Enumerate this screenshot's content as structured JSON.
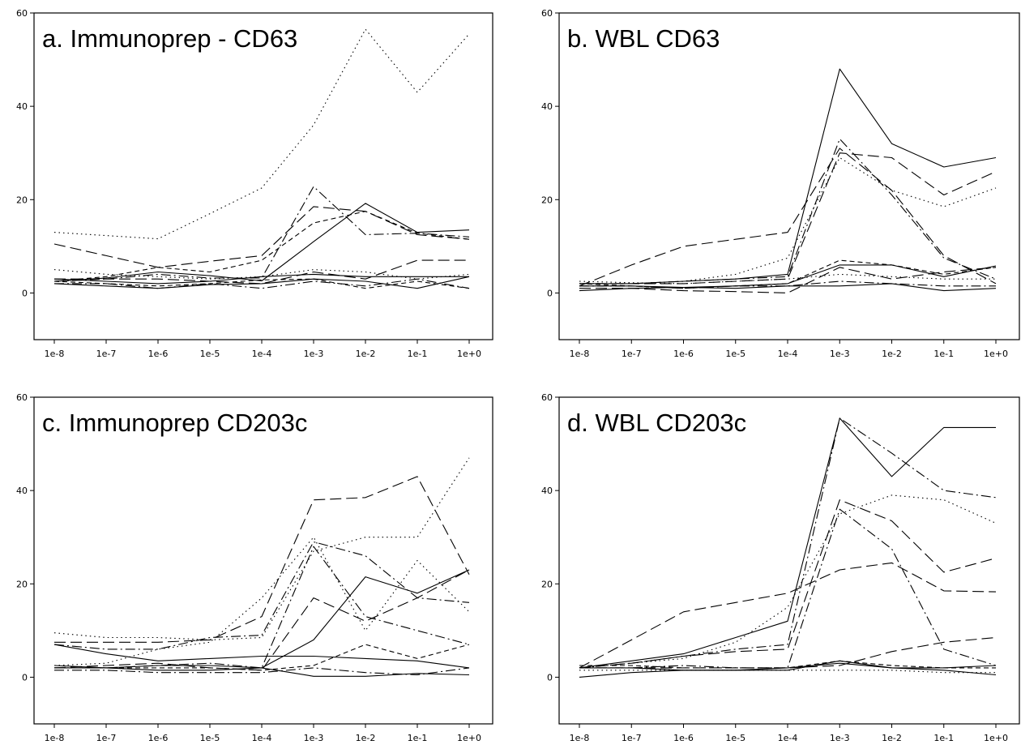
{
  "chart_data": [
    {
      "type": "line",
      "title": "a. Immunoprep - CD63",
      "xlabel": "",
      "ylabel": "",
      "ylim": [
        -10,
        60
      ],
      "yticks": [
        0,
        20,
        40,
        60
      ],
      "categories": [
        "1e-8",
        "1e-7",
        "1e-6",
        "1e-5",
        "1e-4",
        "1e-3",
        "1e-2",
        "1e-1",
        "1e+0"
      ],
      "grid": false,
      "legend": "none",
      "series": [
        {
          "style": "dotted",
          "values": [
            13,
            12.3,
            11.6,
            17,
            22.5,
            36,
            56.5,
            43,
            55.5
          ]
        },
        {
          "style": "solid",
          "values": [
            2.5,
            3.2,
            4.5,
            3.7,
            2.6,
            11,
            19.2,
            13,
            13.5
          ]
        },
        {
          "style": "dashdot",
          "values": [
            2.5,
            3,
            4,
            3.2,
            3.2,
            22.8,
            12.5,
            12.8,
            12
          ]
        },
        {
          "style": "longdash",
          "values": [
            10.5,
            8,
            5.5,
            6.8,
            8,
            18.5,
            17.5,
            12.5,
            11.5
          ]
        },
        {
          "style": "dashed",
          "values": [
            2.5,
            3.5,
            5.5,
            4.5,
            7,
            15,
            17.5,
            12.8,
            11.5
          ]
        },
        {
          "style": "dotted",
          "values": [
            5,
            4,
            3.5,
            3,
            3.5,
            5,
            4.5,
            3,
            4
          ]
        },
        {
          "style": "longdash",
          "values": [
            3,
            3,
            3,
            2.5,
            2,
            4.5,
            3,
            7,
            7
          ]
        },
        {
          "style": "solid",
          "values": [
            3,
            2.5,
            2,
            2.5,
            3.5,
            4,
            3.5,
            3.5,
            3.5
          ]
        },
        {
          "style": "dashdot",
          "values": [
            2,
            2,
            1,
            2,
            1,
            2.5,
            1.5,
            3,
            1
          ]
        },
        {
          "style": "dashed",
          "values": [
            2.5,
            2,
            1.5,
            2,
            2.8,
            3,
            1,
            2.5,
            1
          ]
        },
        {
          "style": "solid",
          "values": [
            2,
            1.5,
            1,
            1.8,
            2,
            3,
            2.5,
            1,
            3.5
          ]
        }
      ]
    },
    {
      "type": "line",
      "title": "b. WBL CD63",
      "xlabel": "",
      "ylabel": "",
      "ylim": [
        -10,
        60
      ],
      "yticks": [
        0,
        20,
        40,
        60
      ],
      "categories": [
        "1e-8",
        "1e-7",
        "1e-6",
        "1e-5",
        "1e-4",
        "1e-3",
        "1e-2",
        "1e-1",
        "1e+0"
      ],
      "grid": false,
      "legend": "none",
      "series": [
        {
          "style": "solid",
          "values": [
            2,
            2,
            2.5,
            3,
            4,
            48,
            32,
            27,
            29
          ]
        },
        {
          "style": "longdash",
          "values": [
            2,
            2,
            2,
            2.5,
            3,
            30,
            29,
            21,
            26
          ]
        },
        {
          "style": "dotted",
          "values": [
            2,
            2,
            2.5,
            4,
            7.5,
            29,
            22,
            18.5,
            22.5
          ]
        },
        {
          "style": "dashdot",
          "values": [
            2,
            2,
            2.5,
            3,
            3.5,
            33,
            21,
            7.5,
            3
          ]
        },
        {
          "style": "longdash",
          "values": [
            1.5,
            6,
            10,
            11.5,
            13,
            31,
            22,
            8,
            2
          ]
        },
        {
          "style": "dashed",
          "values": [
            2,
            1.5,
            1,
            1.5,
            2,
            7,
            6,
            4,
            5.5
          ]
        },
        {
          "style": "solid",
          "values": [
            1.5,
            1.5,
            1.2,
            1.5,
            2,
            6,
            6,
            3.5,
            5.8
          ]
        },
        {
          "style": "dotted",
          "values": [
            2.5,
            2.2,
            2,
            2.5,
            3,
            4,
            3.5,
            3,
            3
          ]
        },
        {
          "style": "dashdot",
          "values": [
            1.5,
            1.5,
            1,
            1.5,
            1.5,
            2.5,
            2,
            1.5,
            1.5
          ]
        },
        {
          "style": "solid",
          "values": [
            0.5,
            1,
            1.2,
            1,
            1.5,
            1.5,
            2,
            0.5,
            1
          ]
        },
        {
          "style": "longdash",
          "values": [
            1,
            1,
            0.5,
            0.3,
            0,
            5.5,
            3,
            4.5,
            5.5
          ]
        }
      ]
    },
    {
      "type": "line",
      "title": "c. Immunoprep CD203c",
      "xlabel": "",
      "ylabel": "",
      "ylim": [
        -10,
        60
      ],
      "yticks": [
        0,
        20,
        40,
        60
      ],
      "categories": [
        "1e-8",
        "1e-7",
        "1e-6",
        "1e-5",
        "1e-4",
        "1e-3",
        "1e-2",
        "1e-1",
        "1e+0"
      ],
      "grid": false,
      "legend": "none",
      "series": [
        {
          "style": "dotted",
          "values": [
            9.5,
            8.5,
            8.5,
            8,
            8.5,
            27,
            30,
            30,
            47
          ]
        },
        {
          "style": "longdash",
          "values": [
            7.5,
            7.5,
            7.5,
            8,
            13,
            38,
            38.5,
            43,
            22
          ]
        },
        {
          "style": "dashdot",
          "values": [
            7,
            6,
            6,
            8.5,
            9,
            29,
            26,
            17,
            16
          ]
        },
        {
          "style": "solid",
          "values": [
            2,
            2,
            2.5,
            2.5,
            2,
            8,
            21.5,
            18,
            23
          ]
        },
        {
          "style": "dotted",
          "values": [
            2.5,
            3,
            6,
            7.5,
            17,
            30,
            10,
            25,
            14
          ]
        },
        {
          "style": "longdash",
          "values": [
            2,
            2.5,
            3,
            2,
            1.5,
            17,
            12,
            17,
            23
          ]
        },
        {
          "style": "dashdot",
          "values": [
            2,
            2,
            2.5,
            3,
            2,
            28,
            13,
            10,
            7
          ]
        },
        {
          "style": "dashed",
          "values": [
            2,
            2,
            2,
            2,
            1.5,
            2.5,
            7,
            4,
            7
          ]
        },
        {
          "style": "solid",
          "values": [
            7,
            5,
            3.5,
            4,
            4.5,
            4.5,
            4,
            3.5,
            2
          ]
        },
        {
          "style": "dashdot",
          "values": [
            1.5,
            1.5,
            1,
            1,
            1,
            2,
            1,
            0.5,
            2
          ]
        },
        {
          "style": "solid",
          "values": [
            2.5,
            2,
            1.5,
            1.5,
            2,
            0.2,
            0.2,
            0.8,
            0.5
          ]
        }
      ]
    },
    {
      "type": "line",
      "title": "d. WBL CD203c",
      "xlabel": "",
      "ylabel": "",
      "ylim": [
        -10,
        60
      ],
      "yticks": [
        0,
        20,
        40,
        60
      ],
      "categories": [
        "1e-8",
        "1e-7",
        "1e-6",
        "1e-5",
        "1e-4",
        "1e-3",
        "1e-2",
        "1e-1",
        "1e+0"
      ],
      "grid": false,
      "legend": "none",
      "series": [
        {
          "style": "solid",
          "values": [
            2,
            3.5,
            5,
            8.5,
            12,
            55.5,
            43,
            53.5,
            53.5
          ]
        },
        {
          "style": "dashdot",
          "values": [
            2,
            3,
            4.5,
            6,
            7,
            55.5,
            48,
            40,
            38.5
          ]
        },
        {
          "style": "dotted",
          "values": [
            2,
            3,
            4,
            7.5,
            15,
            35,
            39,
            38,
            33
          ]
        },
        {
          "style": "longdash",
          "values": [
            2,
            3,
            4.5,
            5.5,
            6,
            38,
            33.5,
            22.5,
            25.5
          ]
        },
        {
          "style": "dashdot",
          "values": [
            2,
            2,
            2.5,
            2,
            2,
            36,
            27.5,
            6,
            2.5
          ]
        },
        {
          "style": "longdash",
          "values": [
            2,
            8,
            14,
            16,
            18,
            23,
            24.5,
            18.5,
            18.3
          ]
        },
        {
          "style": "longdash",
          "values": [
            2,
            2,
            2,
            2,
            2,
            2.5,
            5.5,
            7.5,
            8.5
          ]
        },
        {
          "style": "dashed",
          "values": [
            2.5,
            2.5,
            2,
            2,
            2,
            3.5,
            2.5,
            2,
            2
          ]
        },
        {
          "style": "solid",
          "values": [
            2,
            2,
            1.5,
            1.5,
            2,
            3,
            2,
            2,
            2.5
          ]
        },
        {
          "style": "dotted",
          "values": [
            1.5,
            1.5,
            1.5,
            1.5,
            1.5,
            1.5,
            1.5,
            1,
            1
          ]
        },
        {
          "style": "solid",
          "values": [
            0,
            1,
            1.5,
            1.5,
            1.5,
            3.5,
            2,
            1.5,
            0.5
          ]
        }
      ]
    }
  ]
}
